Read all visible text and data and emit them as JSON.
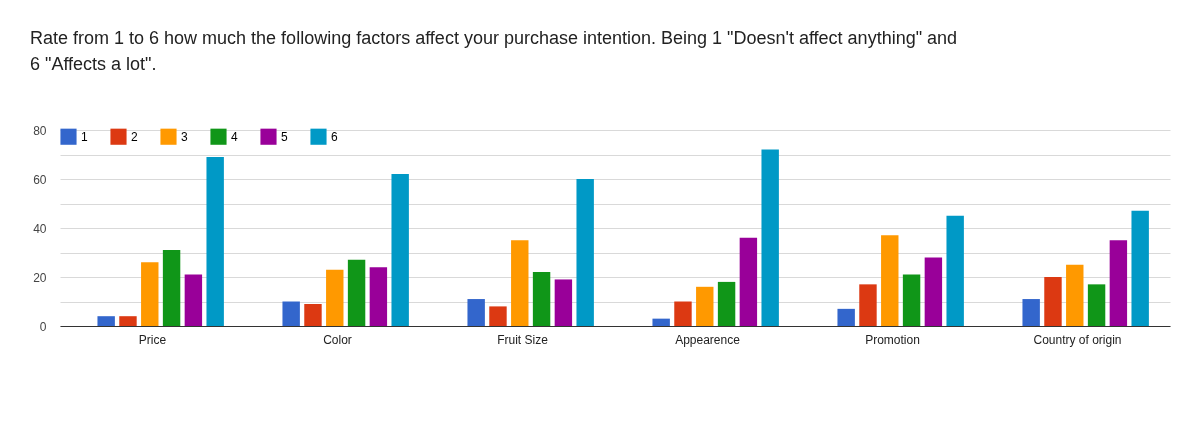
{
  "chart_data": {
    "type": "bar",
    "title": "Rate from 1 to 6 how much the following factors affect your purchase intention. Being 1 \"Doesn't affect anything\" and 6 \"Affects a lot\".",
    "categories": [
      "Price",
      "Color",
      "Fruit Size",
      "Appearence",
      "Promotion",
      "Country of origin"
    ],
    "series": [
      {
        "name": "1",
        "color": "#3366cc",
        "values": [
          4,
          10,
          11,
          3,
          7,
          11
        ]
      },
      {
        "name": "2",
        "color": "#dc3912",
        "values": [
          4,
          9,
          8,
          10,
          17,
          20
        ]
      },
      {
        "name": "3",
        "color": "#ff9900",
        "values": [
          26,
          23,
          35,
          16,
          37,
          25
        ]
      },
      {
        "name": "4",
        "color": "#109618",
        "values": [
          31,
          27,
          22,
          18,
          21,
          17
        ]
      },
      {
        "name": "5",
        "color": "#990099",
        "values": [
          21,
          24,
          19,
          36,
          28,
          35
        ]
      },
      {
        "name": "6",
        "color": "#0099c6",
        "values": [
          69,
          62,
          60,
          72,
          45,
          47
        ]
      }
    ],
    "ylim": [
      0,
      80
    ],
    "yticks": [
      0,
      {
        "value": 10,
        "label": null
      },
      20,
      {
        "value": 30,
        "label": null
      },
      40,
      {
        "value": 50,
        "label": null
      },
      60,
      {
        "value": 70,
        "label": null
      },
      80
    ],
    "grid": "y",
    "legend": "top left"
  }
}
